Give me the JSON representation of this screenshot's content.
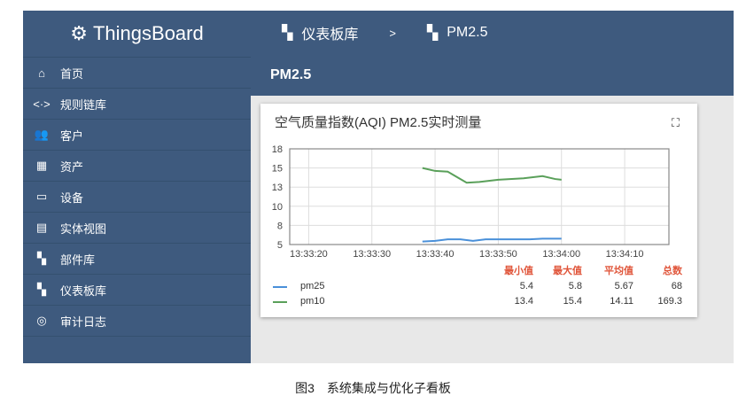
{
  "app": {
    "name": "ThingsBoard"
  },
  "sidebar": {
    "items": [
      {
        "label": "首页",
        "icon": "home-icon",
        "glyph": "⌂"
      },
      {
        "label": "规则链库",
        "icon": "code-arrows-icon",
        "glyph": "<·>"
      },
      {
        "label": "客户",
        "icon": "people-icon",
        "glyph": "👥"
      },
      {
        "label": "资产",
        "icon": "building-icon",
        "glyph": "▦"
      },
      {
        "label": "设备",
        "icon": "devices-icon",
        "glyph": "▭"
      },
      {
        "label": "实体视图",
        "icon": "view-quilt-icon",
        "glyph": "▤"
      },
      {
        "label": "部件库",
        "icon": "widgets-icon",
        "glyph": "▚"
      },
      {
        "label": "仪表板库",
        "icon": "dashboard-icon",
        "glyph": "▚"
      },
      {
        "label": "审计日志",
        "icon": "track-changes-icon",
        "glyph": "◎"
      }
    ]
  },
  "header": {
    "breadcrumb": [
      {
        "label": "仪表板库"
      },
      {
        "label": "PM2.5"
      }
    ],
    "separator": ">",
    "title": "PM2.5"
  },
  "widget": {
    "title": "空气质量指数(AQI) PM2.5实时测量",
    "fullscreen_icon": "fullscreen-icon"
  },
  "chart_data": {
    "type": "line",
    "grid": true,
    "xlim": [
      "13:33:17",
      "13:34:17"
    ],
    "xticks": [
      "13:33:20",
      "13:33:30",
      "13:33:40",
      "13:33:50",
      "13:34:00",
      "13:34:10"
    ],
    "yticks": [
      "18",
      "15",
      "13",
      "10",
      "8",
      "5"
    ],
    "ylim": [
      5,
      18
    ],
    "series": [
      {
        "name": "pm25",
        "color": "#4a90d9",
        "points": [
          [
            "13:33:38",
            5.4
          ],
          [
            "13:33:40",
            5.5
          ],
          [
            "13:33:42",
            5.7
          ],
          [
            "13:33:44",
            5.7
          ],
          [
            "13:33:46",
            5.5
          ],
          [
            "13:33:48",
            5.7
          ],
          [
            "13:33:52",
            5.7
          ],
          [
            "13:33:55",
            5.7
          ],
          [
            "13:33:57",
            5.8
          ],
          [
            "13:34:00",
            5.8
          ]
        ]
      },
      {
        "name": "pm10",
        "color": "#5aa05a",
        "points": [
          [
            "13:33:38",
            15.4
          ],
          [
            "13:33:40",
            15.0
          ],
          [
            "13:33:42",
            14.9
          ],
          [
            "13:33:45",
            13.4
          ],
          [
            "13:33:47",
            13.5
          ],
          [
            "13:33:50",
            13.8
          ],
          [
            "13:33:54",
            14.0
          ],
          [
            "13:33:57",
            14.3
          ],
          [
            "13:33:59",
            13.9
          ],
          [
            "13:34:00",
            13.8
          ]
        ]
      }
    ],
    "legend": {
      "headers": [
        "最小值",
        "最大值",
        "平均值",
        "总数"
      ],
      "rows": [
        {
          "name": "pm25",
          "values": [
            "5.4",
            "5.8",
            "5.67",
            "68"
          ]
        },
        {
          "name": "pm10",
          "values": [
            "13.4",
            "15.4",
            "14.11",
            "169.3"
          ]
        }
      ]
    }
  },
  "caption": "图3　系统集成与优化子看板"
}
